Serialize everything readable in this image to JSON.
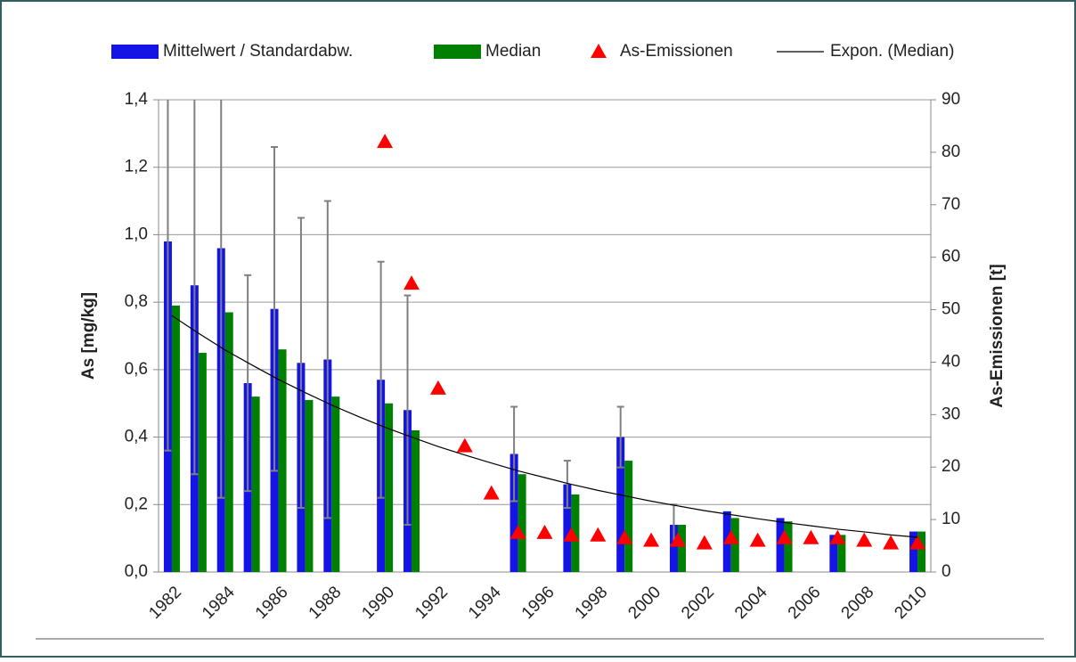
{
  "chart_data": {
    "type": "bar",
    "categories": [
      "1982",
      null,
      "1984",
      null,
      "1986",
      null,
      "1988",
      null,
      "1990",
      null,
      "1992",
      null,
      "1994",
      null,
      "1996",
      null,
      "1998",
      null,
      "2000",
      null,
      "2002",
      null,
      "2004",
      null,
      "2006",
      null,
      "2008",
      null,
      "2010"
    ],
    "series": [
      {
        "name": "Mittelwert / Standardabw.",
        "type": "bar",
        "color": "#1414e6",
        "values": [
          0.98,
          0.85,
          0.96,
          0.56,
          0.78,
          0.62,
          0.63,
          null,
          0.57,
          0.48,
          null,
          null,
          null,
          0.35,
          null,
          0.26,
          null,
          0.4,
          null,
          0.14,
          null,
          0.18,
          null,
          0.16,
          null,
          0.11,
          null,
          null,
          0.12
        ],
        "errors": [
          0.62,
          0.56,
          0.74,
          0.32,
          0.48,
          0.43,
          0.47,
          null,
          0.35,
          0.34,
          null,
          null,
          null,
          0.14,
          null,
          0.07,
          null,
          0.09,
          null,
          0.06,
          null,
          null,
          null,
          null,
          null,
          null,
          null,
          null,
          null
        ]
      },
      {
        "name": "Median",
        "type": "bar",
        "color": "#008000",
        "values": [
          0.79,
          0.65,
          0.77,
          0.52,
          0.66,
          0.51,
          0.52,
          null,
          0.5,
          0.42,
          null,
          null,
          null,
          0.29,
          null,
          0.23,
          null,
          0.33,
          null,
          0.14,
          null,
          0.16,
          null,
          0.15,
          null,
          0.11,
          null,
          null,
          0.12
        ]
      },
      {
        "name": "As-Emissionen",
        "type": "scatter",
        "axis": "y2",
        "color": "#ff0000",
        "values": [
          null,
          null,
          null,
          null,
          null,
          null,
          null,
          null,
          82,
          55,
          35,
          24,
          15,
          7.5,
          7.5,
          7,
          7,
          6.5,
          6,
          6,
          5.5,
          6.5,
          6,
          6.5,
          6.5,
          6.5,
          6,
          5.5,
          5.5
        ]
      },
      {
        "name": "Expon. (Median)",
        "type": "line",
        "color": "#000000",
        "values": [
          0.76,
          0.708,
          0.658,
          0.614,
          0.571,
          0.532,
          0.495,
          0.461,
          0.429,
          0.4,
          0.372,
          0.347,
          0.323,
          0.3,
          0.28,
          0.26,
          0.242,
          0.226,
          0.21,
          0.196,
          0.182,
          0.17,
          0.158,
          0.147,
          0.137,
          0.127,
          0.119,
          0.11,
          0.103
        ]
      }
    ],
    "ylabel": "As [mg/kg]",
    "y2label": "As-Emissionen [t]",
    "ylim": [
      0,
      1.4
    ],
    "yticks": [
      {
        "value": 0,
        "label": "0,0"
      },
      {
        "value": 0.2,
        "label": "0,2"
      },
      {
        "value": 0.4,
        "label": "0,4"
      },
      {
        "value": 0.6,
        "label": "0,6"
      },
      {
        "value": 0.8,
        "label": "0,8"
      },
      {
        "value": 1.0,
        "label": "1,0"
      },
      {
        "value": 1.2,
        "label": "1,2"
      },
      {
        "value": 1.4,
        "label": "1,4"
      }
    ],
    "y2lim": [
      0,
      90
    ],
    "y2ticks": [
      0,
      10,
      20,
      30,
      40,
      50,
      60,
      70,
      80,
      90
    ],
    "grid": true,
    "legend": "top"
  }
}
